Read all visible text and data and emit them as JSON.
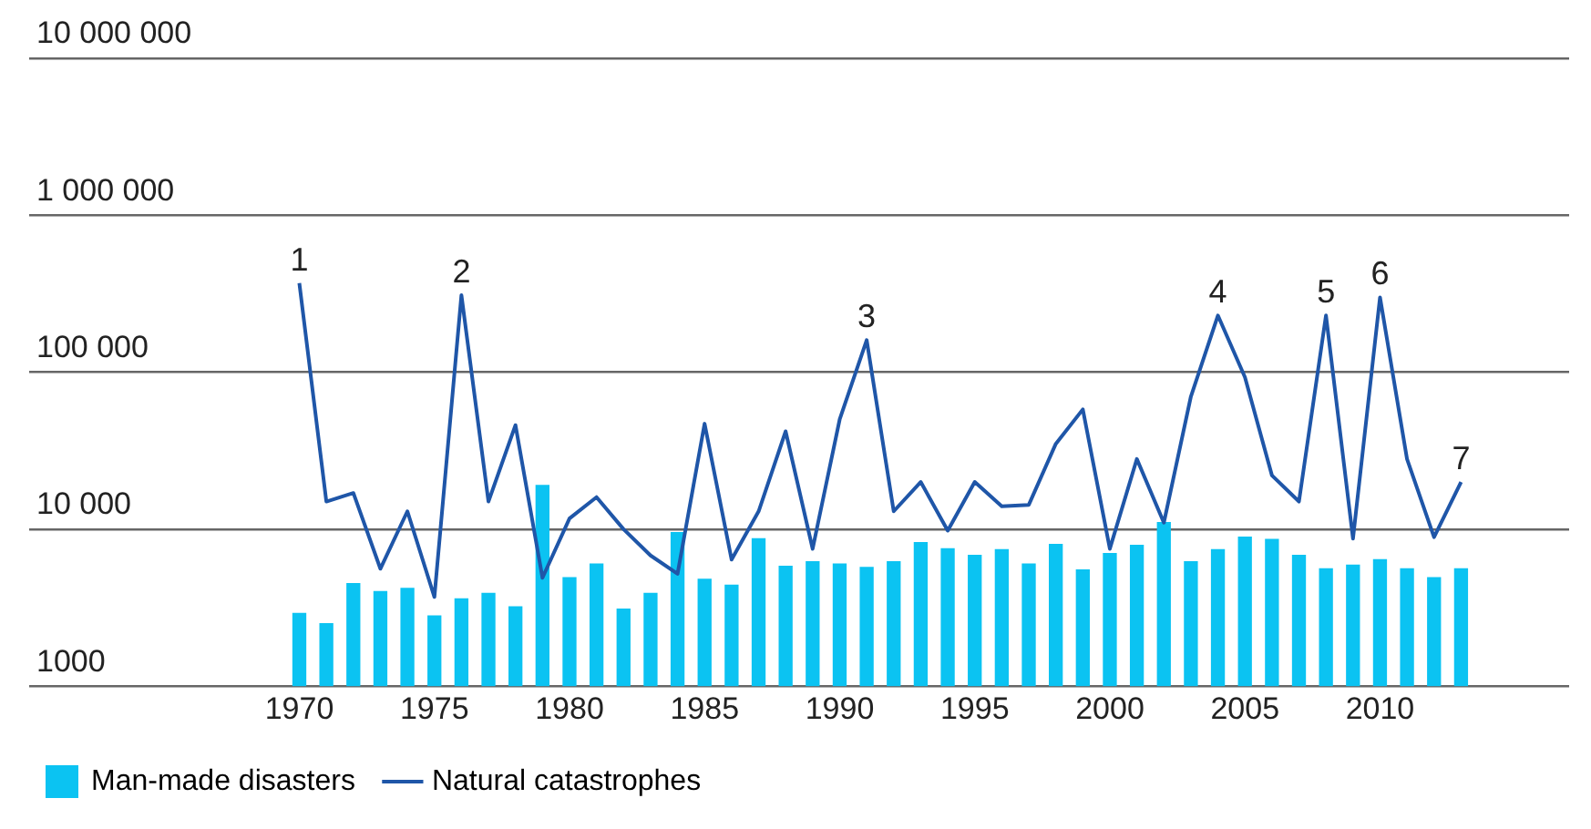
{
  "chart_data": {
    "type": "bar",
    "x": [
      1970,
      1971,
      1972,
      1973,
      1974,
      1975,
      1976,
      1977,
      1978,
      1979,
      1980,
      1981,
      1982,
      1983,
      1984,
      1985,
      1986,
      1987,
      1988,
      1989,
      1990,
      1991,
      1992,
      1993,
      1994,
      1995,
      1996,
      1997,
      1998,
      1999,
      2000,
      2001,
      2002,
      2003,
      2004,
      2005,
      2006,
      2007,
      2008,
      2009,
      2010,
      2011,
      2012,
      2013
    ],
    "series": [
      {
        "name": "Man-made disasters",
        "color": "#0bc3f2",
        "values": [
          2900,
          2500,
          4500,
          4000,
          4200,
          2800,
          3600,
          3900,
          3200,
          19000,
          4900,
          6000,
          3100,
          3900,
          9500,
          4800,
          4400,
          8700,
          5800,
          6200,
          6000,
          5700,
          6200,
          8200,
          7500,
          6800,
          7400,
          6000,
          8000,
          5500,
          7000,
          7900,
          11000,
          6200,
          7400,
          8900,
          8600,
          6800,
          5600,
          5900,
          6400,
          5600,
          4900,
          5600
        ]
      },
      {
        "name": "Natural catastrophes",
        "type": "line",
        "color": "#1f56a8",
        "values": [
          370000,
          15000,
          17000,
          5600,
          13000,
          3700,
          310000,
          15000,
          46000,
          4900,
          11700,
          16000,
          10000,
          6800,
          5200,
          47000,
          6400,
          13000,
          42000,
          7500,
          50000,
          160000,
          13000,
          20000,
          9800,
          20000,
          14000,
          14300,
          35000,
          58000,
          7500,
          28000,
          11000,
          70000,
          230000,
          93000,
          22000,
          15000,
          230000,
          8700,
          300000,
          28000,
          8900,
          20000
        ]
      }
    ],
    "annotations": [
      {
        "text": "1",
        "x": 1970,
        "y": 370000
      },
      {
        "text": "2",
        "x": 1976,
        "y": 310000
      },
      {
        "text": "3",
        "x": 1991,
        "y": 160000
      },
      {
        "text": "4",
        "x": 2004,
        "y": 230000
      },
      {
        "text": "5",
        "x": 2008,
        "y": 230000
      },
      {
        "text": "6",
        "x": 2010,
        "y": 300000
      },
      {
        "text": "7",
        "x": 2013,
        "y": 20000
      }
    ],
    "log": "y",
    "ylim": [
      1000,
      10000000
    ],
    "yticks": [
      {
        "value": 1000,
        "label": "1000"
      },
      {
        "value": 10000,
        "label": "10 000"
      },
      {
        "value": 100000,
        "label": "100 000"
      },
      {
        "value": 1000000,
        "label": "1 000 000"
      },
      {
        "value": 10000000,
        "label": "10 000 000"
      }
    ],
    "xlim": [
      1960,
      2017
    ],
    "xticks": [
      1970,
      1975,
      1980,
      1985,
      1990,
      1995,
      2000,
      2005,
      2010
    ],
    "grid": "y",
    "legend": "bottom",
    "line_style": "solid",
    "marker": "none"
  }
}
